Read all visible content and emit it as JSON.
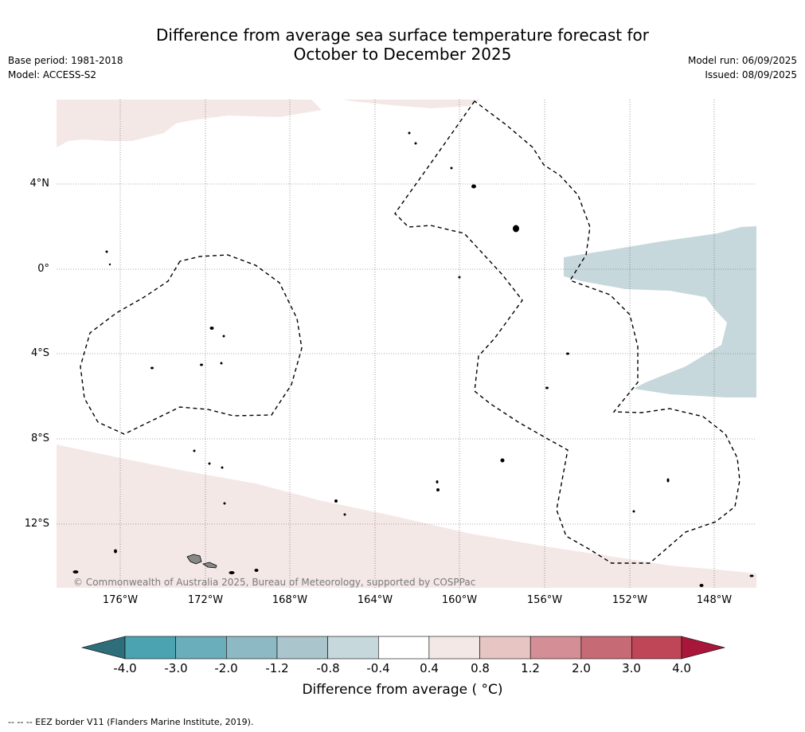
{
  "title_line1": "Difference from average sea surface temperature forecast for",
  "title_line2": "October to December 2025",
  "base_period": "Base period: 1981-2018",
  "model": "Model: ACCESS-S2",
  "model_run": "Model run: 06/09/2025",
  "issued": "Issued: 08/09/2025",
  "copyright": "© Commonwealth of Australia 2025, Bureau of Meteorology, supported by COSPPac",
  "map": {
    "lat_ticks": [
      {
        "label": "4°N",
        "lat": 4
      },
      {
        "label": "0°",
        "lat": 0
      },
      {
        "label": "4°S",
        "lat": -4
      },
      {
        "label": "8°S",
        "lat": -8
      },
      {
        "label": "12°S",
        "lat": -12
      }
    ],
    "lon_ticks": [
      {
        "label": "176°W",
        "lon": -176
      },
      {
        "label": "172°W",
        "lon": -172
      },
      {
        "label": "168°W",
        "lon": -168
      },
      {
        "label": "164°W",
        "lon": -164
      },
      {
        "label": "160°W",
        "lon": -160
      },
      {
        "label": "156°W",
        "lon": -156
      },
      {
        "label": "152°W",
        "lon": -152
      },
      {
        "label": "148°W",
        "lon": -148
      }
    ],
    "lon_range": [
      -179,
      -146
    ],
    "lat_range": [
      -15,
      8
    ],
    "colors": {
      "warm_anomaly": "#f4e8e7",
      "cool_anomaly": "#c6d8dc",
      "land": "#808080"
    }
  },
  "colorbar": {
    "ticks": [
      "-4.0",
      "-3.0",
      "-2.0",
      "-1.2",
      "-0.8",
      "-0.4",
      "0.4",
      "0.8",
      "1.2",
      "2.0",
      "3.0",
      "4.0"
    ],
    "colors": [
      "#2d6e7a",
      "#4ba3b1",
      "#6aadbb",
      "#8db9c4",
      "#aac6cc",
      "#c6d8dc",
      "#ffffff",
      "#f4e8e7",
      "#e6c5c2",
      "#d38f95",
      "#c66b76",
      "#be4656",
      "#a8173a"
    ],
    "label": "Difference from average ( °C)"
  },
  "footnote": "--  --  -- EEZ border V11 (Flanders Marine Institute, 2019)."
}
